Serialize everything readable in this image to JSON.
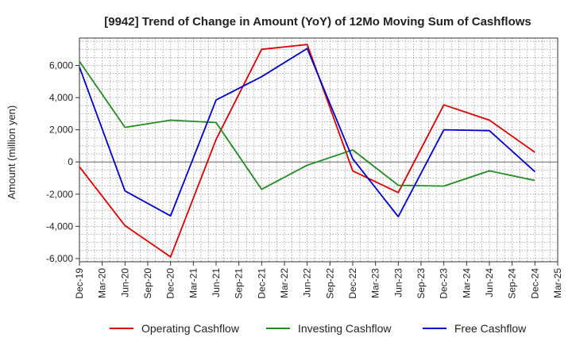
{
  "chart_data": {
    "type": "line",
    "title": "[9942]  Trend of Change in Amount (YoY) of 12Mo Moving Sum of Cashflows",
    "xlabel": "",
    "ylabel": "Amount (million yen)",
    "categories": [
      "Dec-19",
      "Mar-20",
      "Jun-20",
      "Sep-20",
      "Dec-20",
      "Mar-21",
      "Jun-21",
      "Sep-21",
      "Dec-21",
      "Mar-22",
      "Jun-22",
      "Sep-22",
      "Dec-22",
      "Mar-23",
      "Jun-23",
      "Sep-23",
      "Dec-23",
      "Mar-24",
      "Jun-24",
      "Sep-24",
      "Dec-24",
      "Mar-25"
    ],
    "ylim": [
      -6200,
      7700
    ],
    "yticks": [
      -6000,
      -4000,
      -2000,
      0,
      2000,
      4000,
      6000
    ],
    "ytick_labels": [
      "-6,000",
      "-4,000",
      "-2,000",
      "0",
      "2,000",
      "4,000",
      "6,000"
    ],
    "grid": true,
    "legend_position": "bottom",
    "series": [
      {
        "name": "Operating Cashflow",
        "color": "#dd0000",
        "points": [
          [
            0,
            -300
          ],
          [
            2,
            -3950
          ],
          [
            4,
            -5900
          ],
          [
            6,
            1400
          ],
          [
            8,
            7000
          ],
          [
            10,
            7300
          ],
          [
            12,
            -550
          ],
          [
            14,
            -1900
          ],
          [
            16,
            3550
          ],
          [
            18,
            2600
          ],
          [
            20,
            600
          ]
        ]
      },
      {
        "name": "Investing Cashflow",
        "color": "#228b22",
        "points": [
          [
            0,
            6250
          ],
          [
            2,
            2150
          ],
          [
            4,
            2600
          ],
          [
            6,
            2450
          ],
          [
            8,
            -1700
          ],
          [
            10,
            -200
          ],
          [
            12,
            750
          ],
          [
            14,
            -1450
          ],
          [
            16,
            -1500
          ],
          [
            18,
            -550
          ],
          [
            20,
            -1150
          ]
        ]
      },
      {
        "name": "Free Cashflow",
        "color": "#0000cc",
        "points": [
          [
            0,
            5900
          ],
          [
            2,
            -1800
          ],
          [
            4,
            -3350
          ],
          [
            6,
            3850
          ],
          [
            8,
            5300
          ],
          [
            10,
            7050
          ],
          [
            12,
            200
          ],
          [
            14,
            -3400
          ],
          [
            16,
            2000
          ],
          [
            18,
            1950
          ],
          [
            20,
            -600
          ]
        ]
      }
    ]
  }
}
